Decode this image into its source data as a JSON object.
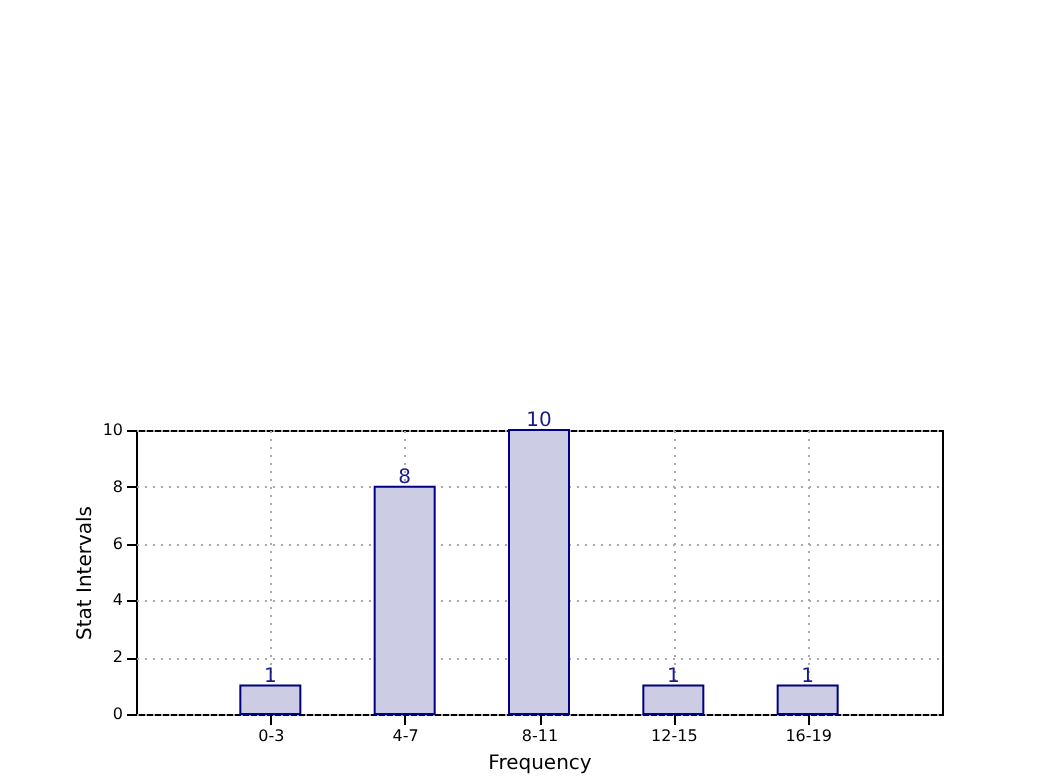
{
  "chart_data": {
    "type": "bar",
    "xlabel": "Frequency",
    "ylabel": "Stat Intervals",
    "categories": [
      "0-3",
      "4-7",
      "8-11",
      "12-15",
      "16-19"
    ],
    "values": [
      1,
      8,
      10,
      1,
      1
    ],
    "color": "#ccccE4",
    "ylim": [
      0,
      10
    ],
    "yticks": [
      0,
      2,
      4,
      6,
      8,
      10
    ],
    "grid": true,
    "data_labels": true
  }
}
